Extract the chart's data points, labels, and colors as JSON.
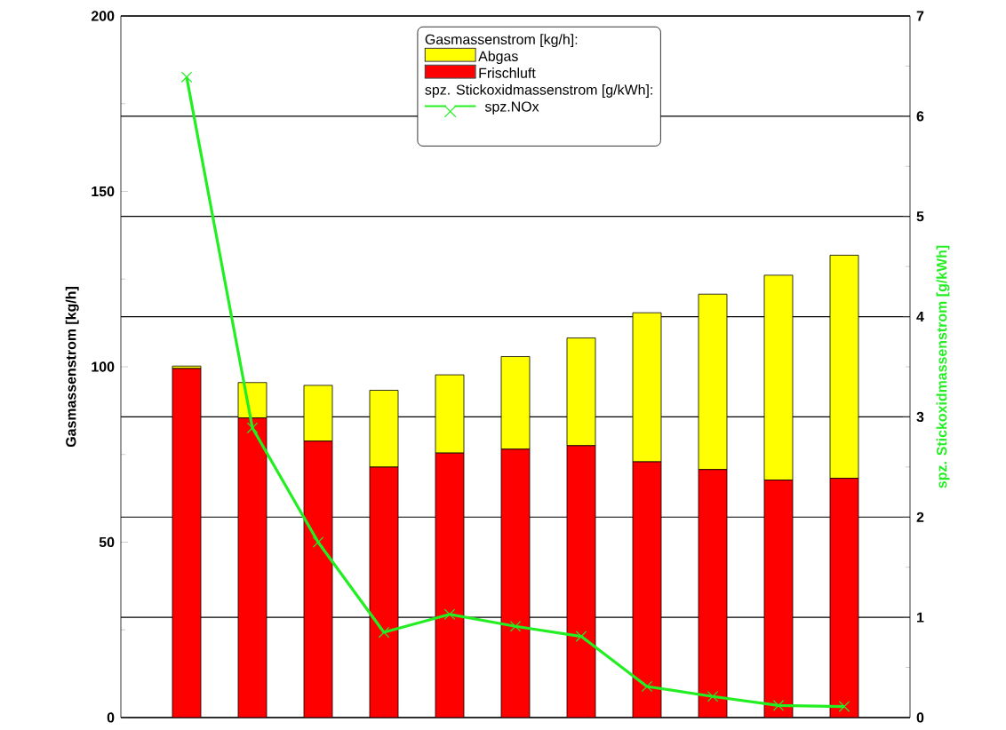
{
  "chart_data": {
    "type": "bar",
    "stacked": true,
    "categories": [
      null,
      null,
      null,
      null,
      null,
      null,
      null,
      null,
      null,
      null,
      null
    ],
    "series": [
      {
        "name": "Frischluft",
        "color": "#ff0000",
        "values": [
          99.5,
          85.4,
          78.8,
          71.4,
          75.4,
          76.5,
          77.5,
          72.9,
          70.7,
          67.7,
          68.2
        ]
      },
      {
        "name": "Abgas",
        "color": "#ffff00",
        "values": [
          0.7,
          10.1,
          15.9,
          21.9,
          22.3,
          26.4,
          30.7,
          42.5,
          50.0,
          58.4,
          63.6
        ]
      },
      {
        "name": "spz.NOx",
        "type": "line",
        "axis": "y2",
        "color": "#22ee22",
        "values": [
          6.39,
          2.89,
          1.75,
          0.85,
          1.03,
          0.91,
          0.81,
          0.31,
          0.21,
          0.12,
          0.11
        ]
      }
    ],
    "ylabel": "Gasmassenstrom [kg/h]",
    "y2label": "spz. Stickoxidmassenstrom  [g/kWh]",
    "ylim": [
      0,
      200
    ],
    "yticks": [
      0,
      50,
      100,
      150,
      200
    ],
    "y2lim": [
      0,
      7
    ],
    "y2ticks": [
      0,
      1,
      2,
      3,
      4,
      5,
      6,
      7
    ],
    "legend_title": "Gasmassenstrom  [kg/h]:",
    "annotations": [
      "spz. Stickoxidmassenstrom  [g/kWh]:"
    ],
    "legend": "top",
    "grid": true,
    "marker": "cross",
    "line_style": "solid"
  }
}
